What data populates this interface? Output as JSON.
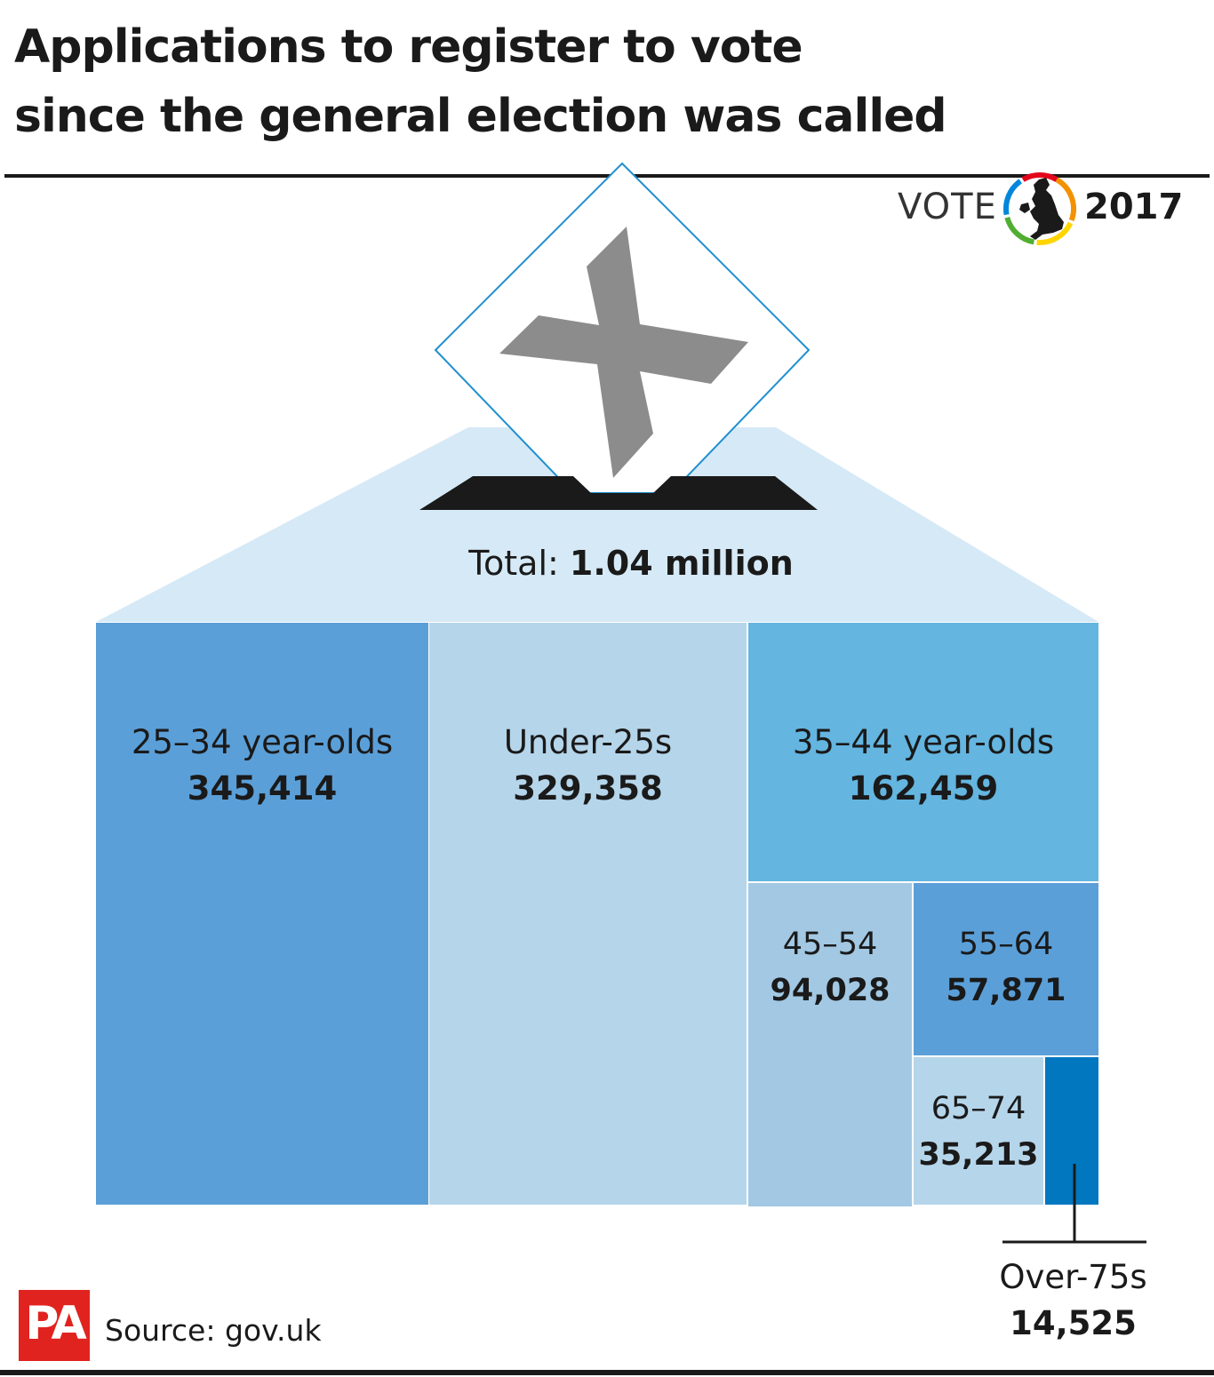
{
  "header": {
    "title_line1": "Applications to register to vote",
    "title_line2": "since the general election was called"
  },
  "logo": {
    "vote_word": "VOTE",
    "year": "2017",
    "ring_colors": [
      "#e3051b",
      "#f39200",
      "#ffd500",
      "#52ae32",
      "#0087dc"
    ]
  },
  "total": {
    "label": "Total:",
    "value": "1.04 million"
  },
  "chart_data": {
    "type": "treemap",
    "title": "Applications to register to vote since the general election was called",
    "total_label": "Total: 1.04 million",
    "units": "applications",
    "cells": [
      {
        "name": "25–34 year-olds",
        "value": 345414,
        "value_label": "345,414",
        "color": "#5b9fd8"
      },
      {
        "name": "Under-25s",
        "value": 329358,
        "value_label": "329,358",
        "color": "#b5d5ea"
      },
      {
        "name": "35–44 year-olds",
        "value": 162459,
        "value_label": "162,459",
        "color": "#64b5e0"
      },
      {
        "name": "45–54",
        "value": 94028,
        "value_label": "94,028",
        "color": "#a2c8e3"
      },
      {
        "name": "55–64",
        "value": 57871,
        "value_label": "57,871",
        "color": "#5b9fd8"
      },
      {
        "name": "65–74",
        "value": 35213,
        "value_label": "35,213",
        "color": "#b5d5ea"
      },
      {
        "name": "Over-75s",
        "value": 14525,
        "value_label": "14,525",
        "color": "#0077bf"
      }
    ]
  },
  "footer": {
    "logo_text": "PA",
    "source": "Source: gov.uk"
  },
  "colors": {
    "house_roof": "#d6e9f6",
    "ballot_border": "#1f8fd0",
    "cross": "#8c8c8c",
    "slot": "#1a1a1a",
    "pa_red": "#e1231f"
  }
}
